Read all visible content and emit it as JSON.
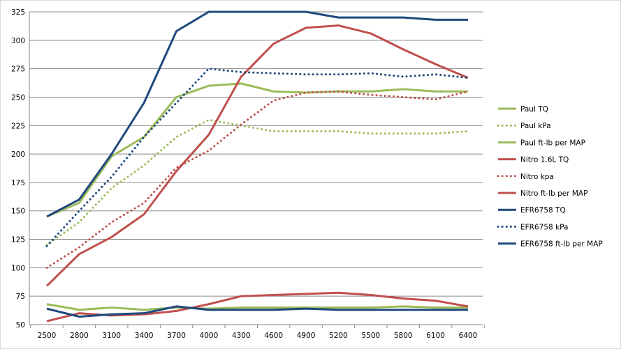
{
  "chart_data": {
    "type": "line",
    "title": "",
    "xlabel": "",
    "ylabel": "",
    "categories": [
      "2500",
      "2800",
      "3100",
      "3400",
      "3700",
      "4000",
      "4300",
      "4600",
      "4900",
      "5200",
      "5500",
      "5800",
      "6100",
      "6400"
    ],
    "ylim": [
      50,
      325
    ],
    "yticks": [
      "50",
      "75",
      "100",
      "125",
      "150",
      "175",
      "200",
      "225",
      "250",
      "275",
      "300",
      "325"
    ],
    "grid": true,
    "legend_position": "right",
    "series": [
      {
        "name": "Paul TQ",
        "color": "#9BBB59",
        "dash": "solid",
        "values": [
          145,
          157,
          198,
          215,
          250,
          260,
          262,
          255,
          254,
          255,
          255,
          257,
          255,
          255
        ]
      },
      {
        "name": "Paul kPa",
        "color": "#9BBB59",
        "dash": "dot",
        "values": [
          120,
          140,
          170,
          190,
          215,
          230,
          225,
          220,
          220,
          220,
          218,
          218,
          218,
          220
        ]
      },
      {
        "name": "Paul ft-lb per MAP",
        "color": "#9BBB59",
        "dash": "solid",
        "values": [
          68,
          63,
          65,
          63,
          65,
          64,
          65,
          65,
          65,
          65,
          65,
          66,
          65,
          65
        ]
      },
      {
        "name": "Nitro 1.6L TQ",
        "color": "#C0504D",
        "dash": "solid",
        "values": [
          84,
          112,
          127,
          147,
          185,
          217,
          268,
          297,
          311,
          313,
          306,
          292,
          279,
          267
        ]
      },
      {
        "name": "Nitro kpa",
        "color": "#C0504D",
        "dash": "dot",
        "values": [
          100,
          118,
          140,
          157,
          188,
          203,
          226,
          247,
          254,
          255,
          252,
          250,
          248,
          255
        ]
      },
      {
        "name": "Nitro ft-lb per MAP",
        "color": "#C0504D",
        "dash": "solid",
        "values": [
          53,
          60,
          58,
          59,
          62,
          68,
          75,
          76,
          77,
          78,
          76,
          73,
          71,
          66
        ]
      },
      {
        "name": "EFR6758 TQ",
        "color": "#1F497D",
        "dash": "solid",
        "values": [
          145,
          160,
          200,
          245,
          308,
          325,
          325,
          325,
          325,
          320,
          320,
          320,
          318,
          318
        ]
      },
      {
        "name": "EFR6758 kPa",
        "color": "#1F497D",
        "dash": "dot",
        "values": [
          119,
          150,
          180,
          215,
          245,
          275,
          272,
          271,
          270,
          270,
          271,
          268,
          270,
          267
        ]
      },
      {
        "name": "EFR6758 ft-lb per MAP",
        "color": "#1F497D",
        "dash": "solid",
        "values": [
          64,
          57,
          59,
          60,
          66,
          63,
          63,
          63,
          64,
          63,
          63,
          63,
          63,
          63
        ]
      }
    ]
  }
}
